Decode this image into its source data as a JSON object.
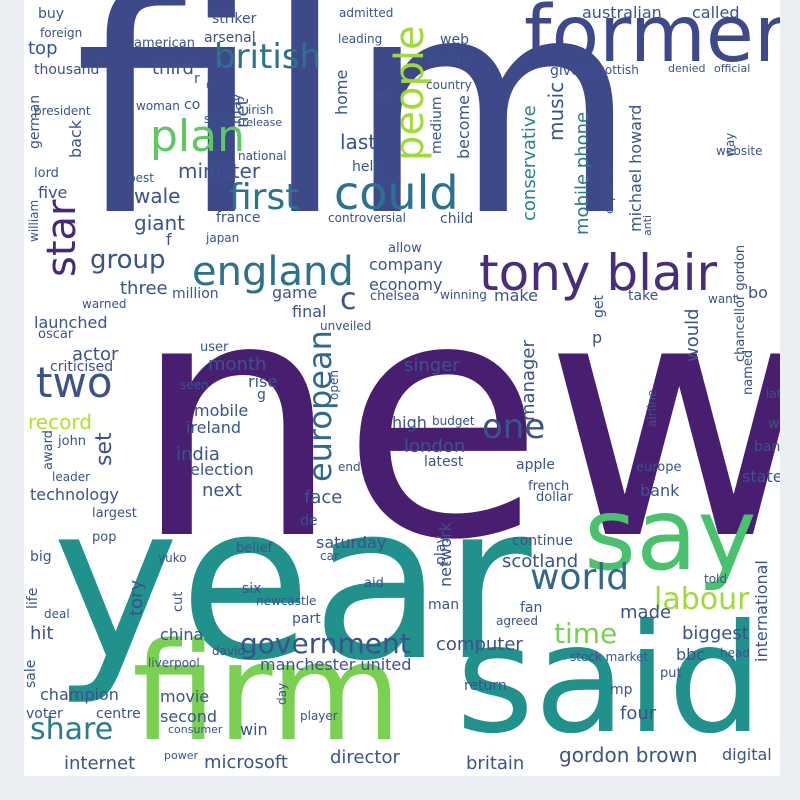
{
  "palette": [
    "#440154",
    "#46327e",
    "#365c8d",
    "#277f8e",
    "#1fa187",
    "#4ac16d",
    "#a0da39",
    "#fde725"
  ],
  "words": [
    {
      "t": "film",
      "c": "#3e4989"
    },
    {
      "t": "new",
      "c": "#481f70"
    },
    {
      "t": "year",
      "c": "#21918c"
    },
    {
      "t": "said",
      "c": "#21918c"
    },
    {
      "t": "firm",
      "c": "#7ad151"
    },
    {
      "t": "say",
      "c": "#4ac16d"
    },
    {
      "t": "former",
      "c": "#3e4989"
    },
    {
      "t": "tony blair",
      "c": "#472d7b"
    },
    {
      "t": "could",
      "c": "#2c728e"
    },
    {
      "t": "people",
      "c": "#a0da39"
    },
    {
      "t": "england",
      "c": "#2c728e"
    },
    {
      "t": "plan",
      "c": "#5ec962"
    },
    {
      "t": "first",
      "c": "#2c728e"
    },
    {
      "t": "british",
      "c": "#2c728e"
    },
    {
      "t": "star",
      "c": "#482878"
    },
    {
      "t": "two",
      "c": "#3b528b"
    },
    {
      "t": "one",
      "c": "#3b528b"
    },
    {
      "t": "world",
      "c": "#31688e"
    },
    {
      "t": "labour",
      "c": "#a0da39"
    },
    {
      "t": "time",
      "c": "#7ad151"
    },
    {
      "t": "government",
      "c": "#3b528b"
    },
    {
      "t": "european",
      "c": "#31688e"
    },
    {
      "t": "share",
      "c": "#287c8e"
    },
    {
      "t": "group",
      "c": "#3b528b"
    },
    {
      "t": "record",
      "c": "#b5de2b"
    },
    {
      "t": "music",
      "c": "#3b528b"
    },
    {
      "t": "conservative",
      "c": "#26828e"
    },
    {
      "t": "mobile phone",
      "c": "#2a788e"
    },
    {
      "t": "minister",
      "c": "#3b528b"
    },
    {
      "t": "giant",
      "c": "#3b528b"
    },
    {
      "t": "wale",
      "c": "#3b528b"
    },
    {
      "t": "third",
      "c": "#3b528b"
    },
    {
      "t": "top",
      "c": "#3b528b"
    },
    {
      "t": "net",
      "c": "#3b528b"
    },
    {
      "t": "last",
      "c": "#3b528b"
    },
    {
      "t": "company",
      "c": "#3b528b"
    },
    {
      "t": "economy",
      "c": "#3b528b"
    },
    {
      "t": "make",
      "c": "#3b528b"
    },
    {
      "t": "back",
      "c": "#3b528b"
    },
    {
      "t": "three",
      "c": "#3b528b"
    },
    {
      "t": "launched",
      "c": "#3b528b"
    },
    {
      "t": "actor",
      "c": "#3b528b"
    },
    {
      "t": "month",
      "c": "#3b528b"
    },
    {
      "t": "set",
      "c": "#3b528b"
    },
    {
      "t": "singer",
      "c": "#3b528b"
    },
    {
      "t": "manager",
      "c": "#3b528b"
    },
    {
      "t": "would",
      "c": "#3b528b"
    },
    {
      "t": "india",
      "c": "#3b528b"
    },
    {
      "t": "ireland",
      "c": "#3b528b"
    },
    {
      "t": "mobile",
      "c": "#3b528b"
    },
    {
      "t": "rise",
      "c": "#3b528b"
    },
    {
      "t": "london",
      "c": "#3b528b"
    },
    {
      "t": "election",
      "c": "#3b528b"
    },
    {
      "t": "next",
      "c": "#3b528b"
    },
    {
      "t": "face",
      "c": "#3b528b"
    },
    {
      "t": "bank",
      "c": "#3b528b"
    },
    {
      "t": "technology",
      "c": "#3b528b"
    },
    {
      "t": "computer",
      "c": "#3b528b"
    },
    {
      "t": "biggest",
      "c": "#3b528b"
    },
    {
      "t": "made",
      "c": "#3b528b"
    },
    {
      "t": "scotland",
      "c": "#3b528b"
    },
    {
      "t": "network",
      "c": "#3b528b"
    },
    {
      "t": "international",
      "c": "#3b528b"
    },
    {
      "t": "bbc",
      "c": "#3b528b"
    },
    {
      "t": "tory",
      "c": "#3b528b"
    },
    {
      "t": "hit",
      "c": "#3b528b"
    },
    {
      "t": "china",
      "c": "#3b528b"
    },
    {
      "t": "champion",
      "c": "#3b528b"
    },
    {
      "t": "movie",
      "c": "#3b528b"
    },
    {
      "t": "second",
      "c": "#3b528b"
    },
    {
      "t": "win",
      "c": "#3b528b"
    },
    {
      "t": "four",
      "c": "#3b528b"
    },
    {
      "t": "mp",
      "c": "#3b528b"
    },
    {
      "t": "return",
      "c": "#3b528b"
    },
    {
      "t": "microsoft",
      "c": "#3b528b"
    },
    {
      "t": "director",
      "c": "#3b528b"
    },
    {
      "t": "internet",
      "c": "#3b528b"
    },
    {
      "t": "britain",
      "c": "#3b528b"
    },
    {
      "t": "gordon brown",
      "c": "#3b528b"
    },
    {
      "t": "digital",
      "c": "#3b528b"
    },
    {
      "t": "manchester united",
      "c": "#3b528b"
    },
    {
      "t": "australian",
      "c": "#3b528b"
    },
    {
      "t": "called",
      "c": "#3b528b"
    },
    {
      "t": "buy",
      "c": "#3b528b"
    },
    {
      "t": "striker",
      "c": "#3b528b"
    },
    {
      "t": "admitted",
      "c": "#3b528b"
    },
    {
      "t": "foreign",
      "c": "#3b528b"
    },
    {
      "t": "american",
      "c": "#3b528b"
    },
    {
      "t": "arsenal",
      "c": "#3b528b"
    },
    {
      "t": "leading",
      "c": "#3b528b"
    },
    {
      "t": "web",
      "c": "#3b528b"
    },
    {
      "t": "thousand",
      "c": "#3b528b"
    },
    {
      "t": "claim",
      "c": "#3b528b"
    },
    {
      "t": "given",
      "c": "#3b528b"
    },
    {
      "t": "scottish",
      "c": "#3b528b"
    },
    {
      "t": "denied",
      "c": "#3b528b"
    },
    {
      "t": "official",
      "c": "#3b528b"
    },
    {
      "t": "country",
      "c": "#3b528b"
    },
    {
      "t": "president",
      "c": "#3b528b"
    },
    {
      "t": "woman",
      "c": "#3b528b"
    },
    {
      "t": "sold",
      "c": "#3b528b"
    },
    {
      "t": "irish",
      "c": "#3b528b"
    },
    {
      "t": "release",
      "c": "#3b528b"
    },
    {
      "t": "german",
      "c": "#3b528b"
    },
    {
      "t": "co",
      "c": "#3b528b"
    },
    {
      "t": "may",
      "c": "#3b528b"
    },
    {
      "t": "home",
      "c": "#3b528b"
    },
    {
      "t": "b",
      "c": "#3b528b"
    },
    {
      "t": "medium",
      "c": "#3b528b"
    },
    {
      "t": "become",
      "c": "#3b528b"
    },
    {
      "t": "lord",
      "c": "#3b528b"
    },
    {
      "t": "best",
      "c": "#3b528b"
    },
    {
      "t": "national",
      "c": "#3b528b"
    },
    {
      "t": "help",
      "c": "#3b528b"
    },
    {
      "t": "michael howard",
      "c": "#3b528b"
    },
    {
      "t": "website",
      "c": "#3b528b"
    },
    {
      "t": "way",
      "c": "#3b528b"
    },
    {
      "t": "expected",
      "c": "#3b528b"
    },
    {
      "t": "five",
      "c": "#3b528b"
    },
    {
      "t": "william",
      "c": "#3b528b"
    },
    {
      "t": "france",
      "c": "#3b528b"
    },
    {
      "t": "controversial",
      "c": "#3b528b"
    },
    {
      "t": "child",
      "c": "#3b528b"
    },
    {
      "t": "anti",
      "c": "#3b528b"
    },
    {
      "t": "chancellor gordon",
      "c": "#3b528b"
    },
    {
      "t": "japan",
      "c": "#3b528b"
    },
    {
      "t": "f",
      "c": "#3b528b"
    },
    {
      "t": "allow",
      "c": "#3b528b"
    },
    {
      "t": "million",
      "c": "#3b528b"
    },
    {
      "t": "game",
      "c": "#3b528b"
    },
    {
      "t": "chelsea",
      "c": "#3b528b"
    },
    {
      "t": "winning",
      "c": "#3b528b"
    },
    {
      "t": "take",
      "c": "#3b528b"
    },
    {
      "t": "want",
      "c": "#3b528b"
    },
    {
      "t": "bo",
      "c": "#3b528b"
    },
    {
      "t": "warned",
      "c": "#3b528b"
    },
    {
      "t": "final",
      "c": "#3b528b"
    },
    {
      "t": "get",
      "c": "#3b528b"
    },
    {
      "t": "oscar",
      "c": "#3b528b"
    },
    {
      "t": "unveiled",
      "c": "#3b528b"
    },
    {
      "t": "p",
      "c": "#3b528b"
    },
    {
      "t": "named",
      "c": "#3b528b"
    },
    {
      "t": "user",
      "c": "#3b528b"
    },
    {
      "t": "criticised",
      "c": "#3b528b"
    },
    {
      "t": "seen",
      "c": "#3b528b"
    },
    {
      "t": "open",
      "c": "#3b528b"
    },
    {
      "t": "g",
      "c": "#3b528b"
    },
    {
      "t": "late",
      "c": "#3b528b"
    },
    {
      "t": "war",
      "c": "#3b528b"
    },
    {
      "t": "high",
      "c": "#3b528b"
    },
    {
      "t": "budget",
      "c": "#3b528b"
    },
    {
      "t": "airline",
      "c": "#3b528b"
    },
    {
      "t": "band",
      "c": "#3b528b"
    },
    {
      "t": "john",
      "c": "#3b528b"
    },
    {
      "t": "award",
      "c": "#3b528b"
    },
    {
      "t": "leader",
      "c": "#3b528b"
    },
    {
      "t": "end",
      "c": "#3b528b"
    },
    {
      "t": "latest",
      "c": "#3b528b"
    },
    {
      "t": "apple",
      "c": "#3b528b"
    },
    {
      "t": "europe",
      "c": "#3b528b"
    },
    {
      "t": "state",
      "c": "#3b528b"
    },
    {
      "t": "french",
      "c": "#3b528b"
    },
    {
      "t": "dollar",
      "c": "#3b528b"
    },
    {
      "t": "largest",
      "c": "#3b528b"
    },
    {
      "t": "de",
      "c": "#3b528b"
    },
    {
      "t": "saturday",
      "c": "#3b528b"
    },
    {
      "t": "continue",
      "c": "#3b528b"
    },
    {
      "t": "play",
      "c": "#3b528b"
    },
    {
      "t": "pop",
      "c": "#3b528b"
    },
    {
      "t": "belief",
      "c": "#3b528b"
    },
    {
      "t": "car",
      "c": "#3b528b"
    },
    {
      "t": "big",
      "c": "#3b528b"
    },
    {
      "t": "yuko",
      "c": "#3b528b"
    },
    {
      "t": "told",
      "c": "#3b528b"
    },
    {
      "t": "six",
      "c": "#3b528b"
    },
    {
      "t": "aid",
      "c": "#3b528b"
    },
    {
      "t": "life",
      "c": "#3b528b"
    },
    {
      "t": "cut",
      "c": "#3b528b"
    },
    {
      "t": "newcastle",
      "c": "#3b528b"
    },
    {
      "t": "man",
      "c": "#3b528b"
    },
    {
      "t": "fan",
      "c": "#3b528b"
    },
    {
      "t": "deal",
      "c": "#3b528b"
    },
    {
      "t": "part",
      "c": "#3b528b"
    },
    {
      "t": "agreed",
      "c": "#3b528b"
    },
    {
      "t": "david",
      "c": "#3b528b"
    },
    {
      "t": "sale",
      "c": "#3b528b"
    },
    {
      "t": "liverpool",
      "c": "#3b528b"
    },
    {
      "t": "stock market",
      "c": "#3b528b"
    },
    {
      "t": "head",
      "c": "#3b528b"
    },
    {
      "t": "put",
      "c": "#3b528b"
    },
    {
      "t": "day",
      "c": "#3b528b"
    },
    {
      "t": "voter",
      "c": "#3b528b"
    },
    {
      "t": "centre",
      "c": "#3b528b"
    },
    {
      "t": "player",
      "c": "#3b528b"
    },
    {
      "t": "consumer",
      "c": "#3b528b"
    },
    {
      "t": "power",
      "c": "#3b528b"
    },
    {
      "t": "c",
      "c": "#3b528b"
    },
    {
      "t": "r",
      "c": "#3b528b"
    },
    {
      "t": "n",
      "c": "#3b528b"
    }
  ]
}
